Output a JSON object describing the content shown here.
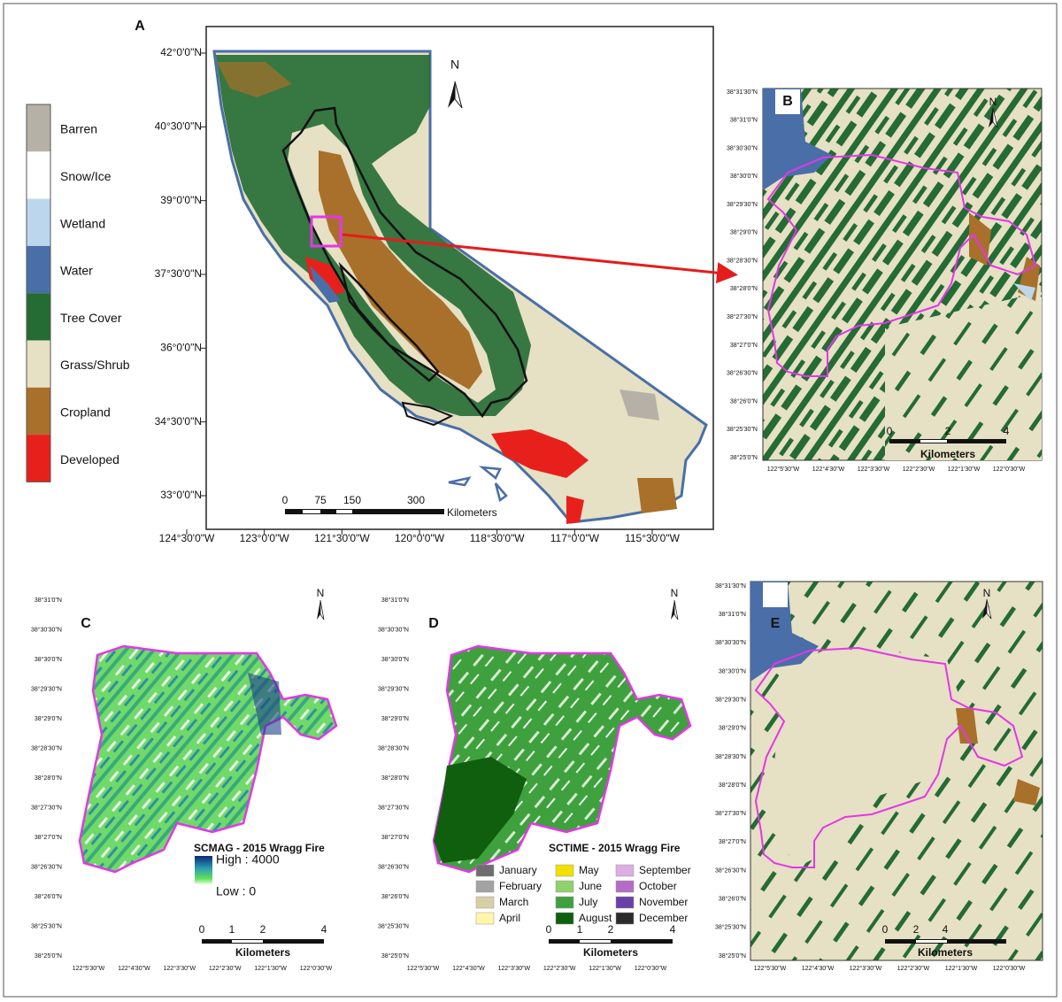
{
  "legend": [
    {
      "label": "Barren",
      "color": "#b6b1a7"
    },
    {
      "label": "Snow/Ice",
      "color": "#ffffff"
    },
    {
      "label": "Wetland",
      "color": "#bcd7ed"
    },
    {
      "label": "Water",
      "color": "#4a6ea8"
    },
    {
      "label": "Tree Cover",
      "color": "#246b34"
    },
    {
      "label": "Grass/Shrub",
      "color": "#e6e0c4"
    },
    {
      "label": "Cropland",
      "color": "#a8702a"
    },
    {
      "label": "Developed",
      "color": "#e8201c"
    }
  ],
  "panel_a": {
    "label": "A",
    "north": "N",
    "lat_labels": [
      "42°0'0\"N",
      "40°30'0\"N",
      "39°0'0\"N",
      "37°30'0\"N",
      "36°0'0\"N",
      "34°30'0\"N",
      "33°0'0\"N"
    ],
    "lon_labels": [
      "124°30'0\"W",
      "123°0'0\"W",
      "121°30'0\"W",
      "120°0'0\"W",
      "118°30'0\"W",
      "117°0'0\"W",
      "115°30'0\"W"
    ],
    "scale_labels": [
      "0",
      "75",
      "150",
      "300"
    ],
    "scale_unit": "Kilometers"
  },
  "panel_b": {
    "label": "B",
    "north": "N",
    "lat_labels": [
      "38°31'30\"N",
      "38°31'0\"N",
      "38°30'30\"N",
      "38°30'0\"N",
      "38°29'30\"N",
      "38°29'0\"N",
      "38°28'30\"N",
      "38°28'0\"N",
      "38°27'30\"N",
      "38°27'0\"N",
      "38°26'30\"N",
      "38°26'0\"N",
      "38°25'30\"N",
      "38°25'0\"N"
    ],
    "lon_labels": [
      "122°5'30\"W",
      "122°4'30\"W",
      "122°3'30\"W",
      "122°2'30\"W",
      "122°1'30\"W",
      "122°0'30\"W"
    ],
    "scale_labels": [
      "0",
      "2",
      "4"
    ],
    "scale_unit": "Kilometers"
  },
  "panel_c": {
    "label": "C",
    "north": "N",
    "lat_labels": [
      "38°31'0\"N",
      "38°30'30\"N",
      "38°30'0\"N",
      "38°29'30\"N",
      "38°29'0\"N",
      "38°28'30\"N",
      "38°28'0\"N",
      "38°27'30\"N",
      "38°27'0\"N",
      "38°26'30\"N",
      "38°26'0\"N",
      "38°25'30\"N",
      "38°25'0\"N"
    ],
    "lon_labels": [
      "122°5'30\"W",
      "122°4'30\"W",
      "122°3'30\"W",
      "122°2'30\"W",
      "122°1'30\"W",
      "122°0'30\"W"
    ],
    "scale_labels": [
      "0",
      "1",
      "2",
      "4"
    ],
    "scale_unit": "Kilometers",
    "legend_title": "SCMAG - 2015 Wragg Fire",
    "legend_high": "High : 4000",
    "legend_low": "Low : 0"
  },
  "panel_d": {
    "label": "D",
    "north": "N",
    "lat_labels": [
      "38°31'0\"N",
      "38°30'30\"N",
      "38°30'0\"N",
      "38°29'30\"N",
      "38°29'0\"N",
      "38°28'30\"N",
      "38°28'0\"N",
      "38°27'30\"N",
      "38°27'0\"N",
      "38°26'30\"N",
      "38°26'0\"N",
      "38°25'30\"N",
      "38°25'0\"N"
    ],
    "lon_labels": [
      "122°5'30\"W",
      "122°4'30\"W",
      "122°3'30\"W",
      "122°2'30\"W",
      "122°1'30\"W",
      "122°0'30\"W"
    ],
    "scale_labels": [
      "0",
      "1",
      "2",
      "4"
    ],
    "scale_unit": "Kilometers",
    "legend_title": "SCTIME - 2015 Wragg Fire",
    "months": [
      {
        "label": "January",
        "color": "#6e6e6e"
      },
      {
        "label": "February",
        "color": "#a3a3a3"
      },
      {
        "label": "March",
        "color": "#d8cfa6"
      },
      {
        "label": "April",
        "color": "#fff6aa"
      },
      {
        "label": "May",
        "color": "#f3df00"
      },
      {
        "label": "June",
        "color": "#8fd16a"
      },
      {
        "label": "July",
        "color": "#3ea13e"
      },
      {
        "label": "August",
        "color": "#0f5f0f"
      },
      {
        "label": "September",
        "color": "#dcaee3"
      },
      {
        "label": "October",
        "color": "#b56cc9"
      },
      {
        "label": "November",
        "color": "#6a3fa6"
      },
      {
        "label": "December",
        "color": "#2b2b2b"
      }
    ]
  },
  "panel_e": {
    "label": "E",
    "north": "N",
    "lat_labels": [
      "38°31'30\"N",
      "38°31'0\"N",
      "38°30'30\"N",
      "38°30'0\"N",
      "38°29'30\"N",
      "38°29'0\"N",
      "38°28'30\"N",
      "38°28'0\"N",
      "38°27'30\"N",
      "38°27'0\"N",
      "38°26'30\"N",
      "38°26'0\"N",
      "38°25'30\"N",
      "38°25'0\"N"
    ],
    "lon_labels": [
      "122°5'30\"W",
      "122°4'30\"W",
      "122°3'30\"W",
      "122°2'30\"W",
      "122°1'30\"W",
      "122°0'30\"W"
    ],
    "scale_labels": [
      "0",
      "2",
      "4"
    ],
    "scale_unit": "Kilometers"
  }
}
